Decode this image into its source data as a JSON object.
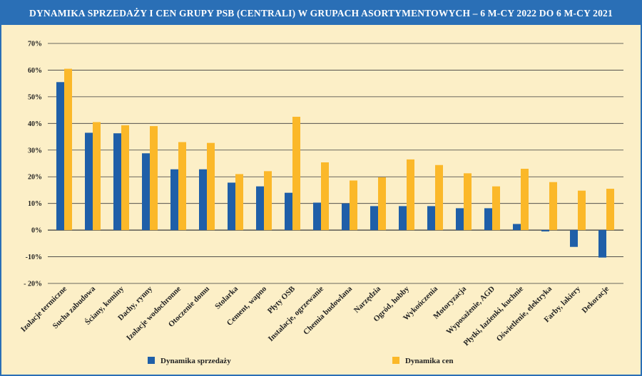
{
  "chart_data": {
    "type": "bar",
    "title": "DYNAMIKA SPRZEDAŻY I CEN GRUPY PSB (CENTRALI) W GRUPACH ASORTYMENTOWYCH – 6 M-CY 2022 DO 6 M-CY 2021",
    "categories": [
      "Izolacje termiczne",
      "Sucha zabudowa",
      "Ściany, kominy",
      "Dachy, rynny",
      "Izolacje wodochronne",
      "Otoczenie domu",
      "Stolarka",
      "Cement, wapno",
      "Płyty OSB",
      "Instalacje, ogrzewanie",
      "Chemia budowlana",
      "Narzędzia",
      "Ogród, hobby",
      "Wykończenia",
      "Motoryzacja",
      "Wyposażenie, AGD",
      "Płytki, łazienki, kuchnie",
      "Oświetlenie, elektryka",
      "Farby, lakiery",
      "Dekoracje"
    ],
    "series": [
      {
        "name": "Dynamika sprzedaży",
        "color": "#1f5fa8",
        "values": [
          55.5,
          36.5,
          36.3,
          28.8,
          22.8,
          22.8,
          17.8,
          16.4,
          14.0,
          10.3,
          10.0,
          9.0,
          9.0,
          9.0,
          8.2,
          8.2,
          2.3,
          -0.5,
          -6.3,
          -10.3
        ]
      },
      {
        "name": "Dynamika cen",
        "color": "#fbb829",
        "values": [
          60.5,
          40.5,
          39.3,
          39.0,
          33.0,
          32.7,
          21.0,
          22.1,
          42.5,
          25.4,
          18.6,
          19.8,
          26.5,
          24.4,
          21.3,
          16.4,
          23.0,
          18.0,
          14.8,
          15.5
        ]
      }
    ],
    "ylim": [
      -20,
      70
    ],
    "yticks": [
      -20,
      -10,
      0,
      10,
      20,
      30,
      40,
      50,
      60,
      70
    ],
    "ytick_labels": [
      "- 20%",
      "-10%",
      "0%",
      "10%",
      "20%",
      "30%",
      "40%",
      "50%",
      "60%",
      "70%"
    ],
    "grid": true,
    "legend": [
      "Dynamika sprzedaży",
      "Dynamika cen"
    ],
    "legend_position": "bottom",
    "xlabel": "",
    "ylabel": ""
  },
  "colors": {
    "frame": "#2a6fb6",
    "background": "#fcefc7",
    "grid": "#3a3a3a"
  }
}
